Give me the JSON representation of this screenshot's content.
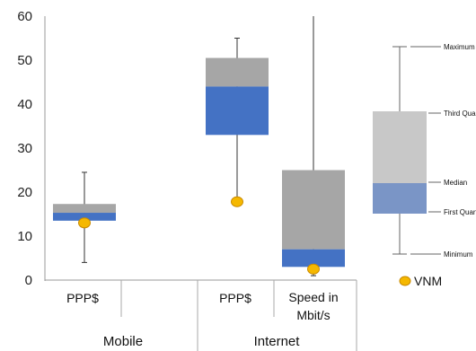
{
  "chart_data": {
    "type": "boxplot",
    "y_axis": {
      "ylim": [
        0,
        60
      ],
      "ticks": [
        "0",
        "10",
        "20",
        "30",
        "40",
        "50",
        "60"
      ]
    },
    "groups": [
      {
        "label": "Mobile",
        "categories": [
          "PPP$",
          ""
        ]
      },
      {
        "label": "Internet",
        "categories": [
          "PPP$",
          "Speed in Mbit/s"
        ]
      }
    ],
    "boxes": [
      {
        "group": "Mobile",
        "category": "PPP$",
        "min": 4,
        "q1": 13.5,
        "median": 15.3,
        "q3": 17.3,
        "max": 24.5,
        "vnm": 13
      },
      {
        "group": "Internet",
        "category": "PPP$",
        "min": 18,
        "q1": 33,
        "median": 44,
        "q3": 50.5,
        "max": 55,
        "vnm": 17.8
      },
      {
        "group": "Internet",
        "category": "Speed in Mbit/s",
        "min": 1,
        "q1": 3,
        "median": 7,
        "q3": 25,
        "max": 60,
        "vnm": 2.5
      }
    ],
    "colors": {
      "lower_box": "#4472c4",
      "upper_box": "#a6a6a6",
      "vnm_marker": "#f5b800",
      "vnm_edge": "#c98a00"
    },
    "legend": {
      "labels": {
        "maximum": "Maximum",
        "third_quartile": "Third Quartile",
        "median": "Median",
        "first_quartile": "First Quartile",
        "minimum": "Minimum"
      },
      "colors": {
        "lower_box": "#7a95c6",
        "upper_box": "#c8c8c8"
      },
      "vnm_label": "VNM"
    }
  }
}
